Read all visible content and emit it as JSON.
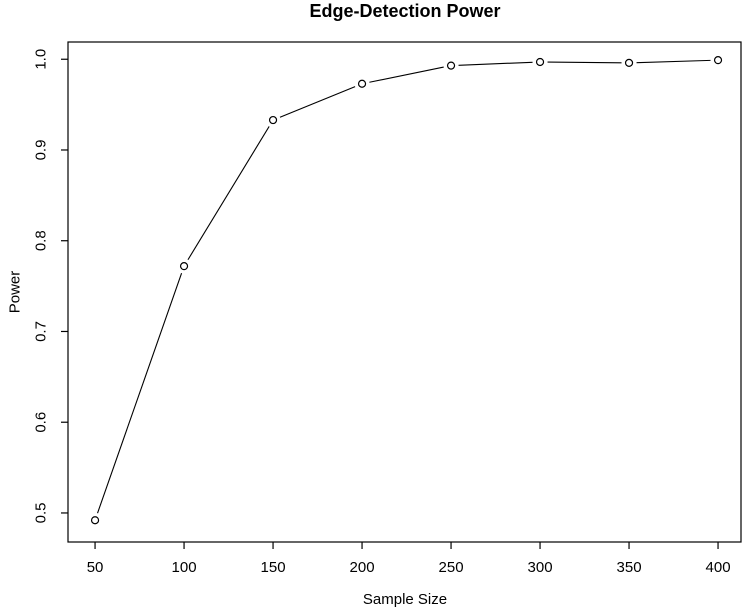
{
  "figure": {
    "background_color": "#ffffff",
    "foreground_color": "#000000"
  },
  "chart_data": {
    "type": "line",
    "title": "Edge-Detection Power",
    "xlabel": "Sample Size",
    "ylabel": "Power",
    "x": [
      50,
      100,
      150,
      200,
      250,
      300,
      350,
      400
    ],
    "series": [
      {
        "name": "Power",
        "values": [
          0.492,
          0.772,
          0.933,
          0.973,
          0.993,
          0.997,
          0.996,
          0.999
        ]
      }
    ],
    "xlim": [
      34.8,
      412.9
    ],
    "ylim": [
      0.468,
      1.019
    ],
    "x_ticks": [
      50,
      100,
      150,
      200,
      250,
      300,
      350,
      400
    ],
    "x_tick_labels": [
      "50",
      "100",
      "150",
      "200",
      "250",
      "300",
      "350",
      "400"
    ],
    "y_ticks": [
      0.5,
      0.6,
      0.7,
      0.8,
      0.9,
      1.0
    ],
    "y_tick_labels": [
      "0.5",
      "0.6",
      "0.7",
      "0.8",
      "0.9",
      "1.0"
    ],
    "grid": false,
    "legend": "none",
    "marker": "open-circle",
    "marker_color": "#000000",
    "line_color": "#000000",
    "line_point_gap": true
  }
}
